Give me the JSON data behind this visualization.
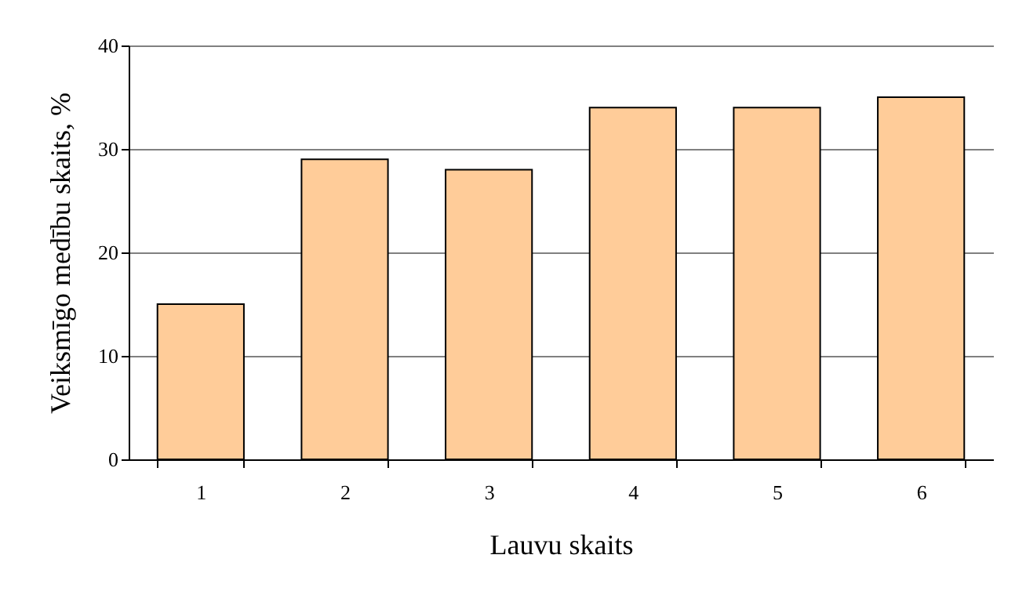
{
  "chart_data": {
    "type": "bar",
    "xlabel": "Lauvu skaits",
    "ylabel": "Veiksmīgo medību skaits, %",
    "categories": [
      "1",
      "2",
      "3",
      "4",
      "5",
      "6"
    ],
    "values": [
      15,
      29,
      28,
      34,
      34,
      35
    ],
    "color": "#ffcc99",
    "ylim": [
      0,
      40
    ],
    "yticks": [
      0,
      10,
      20,
      30,
      40
    ],
    "grid": "y"
  }
}
